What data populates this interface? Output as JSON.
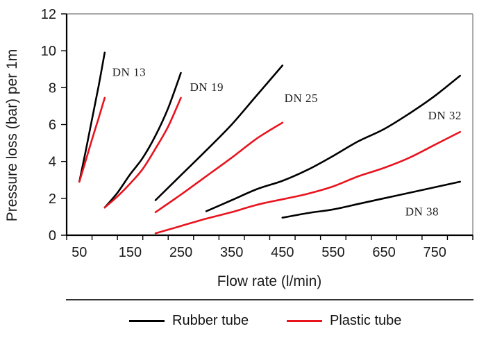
{
  "chart_data": {
    "type": "line",
    "title": "",
    "xlabel": "Flow rate (l/min)",
    "ylabel": "Pressure loss (bar) per 1m",
    "x_axis": {
      "min": 25,
      "max": 825,
      "tick_step": 50,
      "labeled_ticks": [
        50,
        150,
        250,
        350,
        450,
        550,
        650,
        750
      ]
    },
    "y_axis": {
      "min": 0,
      "max": 12,
      "tick_step": 2,
      "labeled_ticks": [
        0,
        2,
        4,
        6,
        8,
        10,
        12
      ]
    },
    "grid": false,
    "legend_position": "bottom",
    "series": [
      {
        "name": "Rubber tube",
        "color": "#000000",
        "curves": [
          {
            "label": "DN 13",
            "points": [
              [
                50,
                2.9
              ],
              [
                62,
                4.5
              ],
              [
                75,
                6.3
              ],
              [
                88,
                8.1
              ],
              [
                100,
                9.9
              ]
            ]
          },
          {
            "label": "DN 19",
            "points": [
              [
                100,
                1.5
              ],
              [
                125,
                2.3
              ],
              [
                150,
                3.3
              ],
              [
                175,
                4.2
              ],
              [
                200,
                5.4
              ],
              [
                225,
                6.9
              ],
              [
                250,
                8.8
              ]
            ]
          },
          {
            "label": "DN 25",
            "points": [
              [
                200,
                1.9
              ],
              [
                250,
                3.25
              ],
              [
                300,
                4.6
              ],
              [
                350,
                6.0
              ],
              [
                400,
                7.6
              ],
              [
                450,
                9.2
              ]
            ]
          },
          {
            "label": "DN 32",
            "points": [
              [
                300,
                1.3
              ],
              [
                350,
                1.9
              ],
              [
                400,
                2.5
              ],
              [
                450,
                2.95
              ],
              [
                500,
                3.55
              ],
              [
                550,
                4.3
              ],
              [
                600,
                5.1
              ],
              [
                650,
                5.75
              ],
              [
                700,
                6.6
              ],
              [
                750,
                7.55
              ],
              [
                800,
                8.65
              ]
            ]
          },
          {
            "label": "DN 38",
            "points": [
              [
                450,
                0.95
              ],
              [
                500,
                1.2
              ],
              [
                550,
                1.4
              ],
              [
                600,
                1.7
              ],
              [
                650,
                2.0
              ],
              [
                700,
                2.3
              ],
              [
                750,
                2.6
              ],
              [
                800,
                2.9
              ]
            ]
          }
        ]
      },
      {
        "name": "Plastic tube",
        "color": "#e8131d",
        "curves": [
          {
            "label": "DN 13",
            "points": [
              [
                50,
                2.9
              ],
              [
                62,
                4.0
              ],
              [
                75,
                5.2
              ],
              [
                88,
                6.35
              ],
              [
                100,
                7.45
              ]
            ]
          },
          {
            "label": "DN 19",
            "points": [
              [
                100,
                1.5
              ],
              [
                125,
                2.1
              ],
              [
                150,
                2.8
              ],
              [
                175,
                3.6
              ],
              [
                200,
                4.7
              ],
              [
                225,
                5.9
              ],
              [
                250,
                7.45
              ]
            ]
          },
          {
            "label": "DN 25",
            "points": [
              [
                200,
                1.25
              ],
              [
                250,
                2.2
              ],
              [
                300,
                3.2
              ],
              [
                350,
                4.2
              ],
              [
                400,
                5.25
              ],
              [
                450,
                6.1
              ]
            ]
          },
          {
            "label": "DN 32",
            "points": [
              [
                200,
                0.1
              ],
              [
                250,
                0.5
              ],
              [
                300,
                0.9
              ],
              [
                350,
                1.25
              ],
              [
                400,
                1.65
              ],
              [
                450,
                1.95
              ],
              [
                500,
                2.25
              ],
              [
                550,
                2.65
              ],
              [
                600,
                3.2
              ],
              [
                650,
                3.65
              ],
              [
                700,
                4.2
              ],
              [
                750,
                4.9
              ],
              [
                800,
                5.6
              ]
            ]
          }
        ]
      }
    ],
    "annotations": [
      {
        "text": "DN 13",
        "x": 148,
        "y": 8.85
      },
      {
        "text": "DN 19",
        "x": 301,
        "y": 8.05
      },
      {
        "text": "DN 25",
        "x": 487,
        "y": 7.45
      },
      {
        "text": "DN 32",
        "x": 770,
        "y": 6.5
      },
      {
        "text": "DN 38",
        "x": 725,
        "y": 1.3
      }
    ]
  },
  "colors": {
    "axis": "#000000",
    "frame": "#8c8c8c",
    "text": "#1a1a1a"
  }
}
